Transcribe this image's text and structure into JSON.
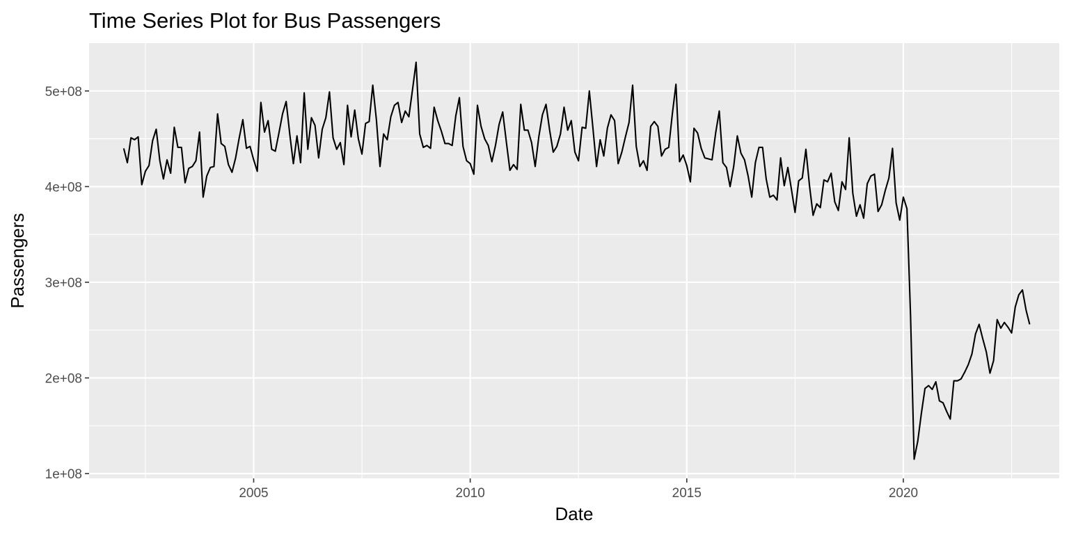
{
  "chart_data": {
    "type": "line",
    "title": "Time Series Plot for Bus Passengers",
    "xlabel": "Date",
    "ylabel": "Passengers",
    "xlim": [
      2001.2,
      2023.6
    ],
    "ylim": [
      95000000,
      550000000
    ],
    "x_ticks": [
      2005,
      2010,
      2015,
      2020
    ],
    "x_tick_labels": [
      "2005",
      "2010",
      "2015",
      "2020"
    ],
    "x_minor_ticks": [
      2002.5,
      2007.5,
      2012.5,
      2017.5,
      2022.5
    ],
    "y_ticks": [
      100000000,
      200000000,
      300000000,
      400000000,
      500000000
    ],
    "y_tick_labels": [
      "1e+08",
      "2e+08",
      "3e+08",
      "4e+08",
      "5e+08"
    ],
    "y_minor_ticks": [
      150000000,
      250000000,
      350000000,
      450000000
    ],
    "grid": true,
    "legend": "none",
    "line_color": "#000000",
    "panel_color": "#ebebeb",
    "series": [
      {
        "x_start": "2002-01",
        "frequency": "monthly",
        "values": [
          440,
          425,
          451,
          449,
          452,
          402,
          416,
          422,
          448,
          460,
          427,
          408,
          428,
          414,
          462,
          441,
          441,
          404,
          419,
          421,
          427,
          457,
          389,
          411,
          420,
          421,
          476,
          445,
          442,
          423,
          415,
          430,
          451,
          470,
          440,
          442,
          428,
          416,
          488,
          457,
          469,
          439,
          437,
          456,
          476,
          489,
          455,
          424,
          453,
          425,
          498,
          439,
          472,
          464,
          430,
          460,
          472,
          499,
          451,
          439,
          446,
          423,
          485,
          452,
          480,
          450,
          434,
          466,
          468,
          506,
          470,
          421,
          455,
          449,
          473,
          485,
          488,
          467,
          479,
          473,
          501,
          530,
          455,
          441,
          443,
          440,
          483,
          469,
          458,
          445,
          445,
          443,
          474,
          493,
          442,
          427,
          424,
          413,
          485,
          463,
          450,
          443,
          426,
          443,
          465,
          478,
          447,
          417,
          423,
          418,
          486,
          459,
          459,
          446,
          421,
          452,
          475,
          486,
          459,
          436,
          442,
          455,
          483,
          459,
          469,
          436,
          427,
          462,
          461,
          500,
          461,
          421,
          449,
          432,
          461,
          475,
          469,
          424,
          436,
          452,
          467,
          506,
          442,
          421,
          427,
          417,
          463,
          468,
          463,
          432,
          439,
          441,
          476,
          507,
          426,
          433,
          422,
          405,
          461,
          456,
          440,
          430,
          429,
          428,
          456,
          479,
          425,
          420,
          400,
          421,
          453,
          435,
          428,
          411,
          389,
          425,
          441,
          441,
          408,
          389,
          391,
          386,
          430,
          401,
          420,
          397,
          373,
          406,
          409,
          439,
          401,
          370,
          382,
          378,
          407,
          405,
          414,
          384,
          375,
          405,
          397,
          451,
          393,
          369,
          381,
          367,
          403,
          411,
          413,
          374,
          381,
          396,
          409,
          440,
          383,
          365,
          389,
          377,
          265,
          115,
          134,
          163,
          189,
          192,
          188,
          196,
          176,
          174,
          165,
          157,
          197,
          197,
          199,
          206,
          214,
          225,
          246,
          256,
          241,
          227,
          205,
          218,
          261,
          252,
          258,
          253,
          247,
          274,
          287,
          292,
          271,
          256
        ]
      }
    ]
  }
}
